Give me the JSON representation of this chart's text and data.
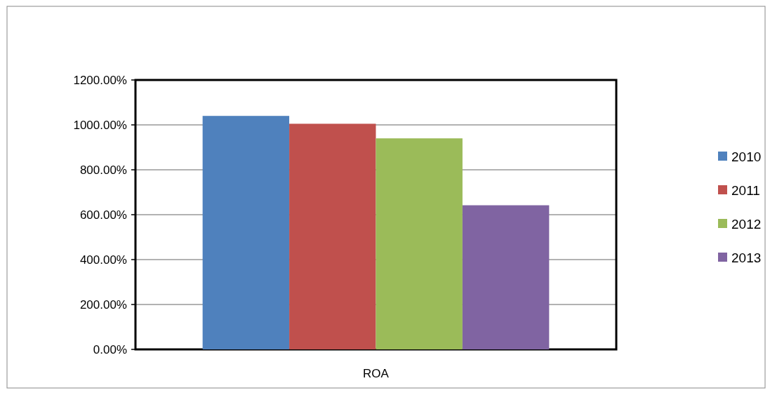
{
  "chart_data": {
    "type": "bar",
    "categories": [
      "ROA"
    ],
    "series": [
      {
        "name": "2010",
        "color": "#4f81bd",
        "values": [
          1040
        ]
      },
      {
        "name": "2011",
        "color": "#c0504d",
        "values": [
          1005
        ]
      },
      {
        "name": "2012",
        "color": "#9bbb59",
        "values": [
          940
        ]
      },
      {
        "name": "2013",
        "color": "#8064a2",
        "values": [
          642
        ]
      }
    ],
    "ylim": [
      0,
      1200
    ],
    "yticks": [
      {
        "value": 0,
        "label": "0.00%"
      },
      {
        "value": 200,
        "label": "200.00%"
      },
      {
        "value": 400,
        "label": "400.00%"
      },
      {
        "value": 600,
        "label": "600.00%"
      },
      {
        "value": 800,
        "label": "800.00%"
      },
      {
        "value": 1000,
        "label": "1000.00%"
      },
      {
        "value": 1200,
        "label": "1200.00%"
      }
    ],
    "grid": "y",
    "legend": "right"
  }
}
